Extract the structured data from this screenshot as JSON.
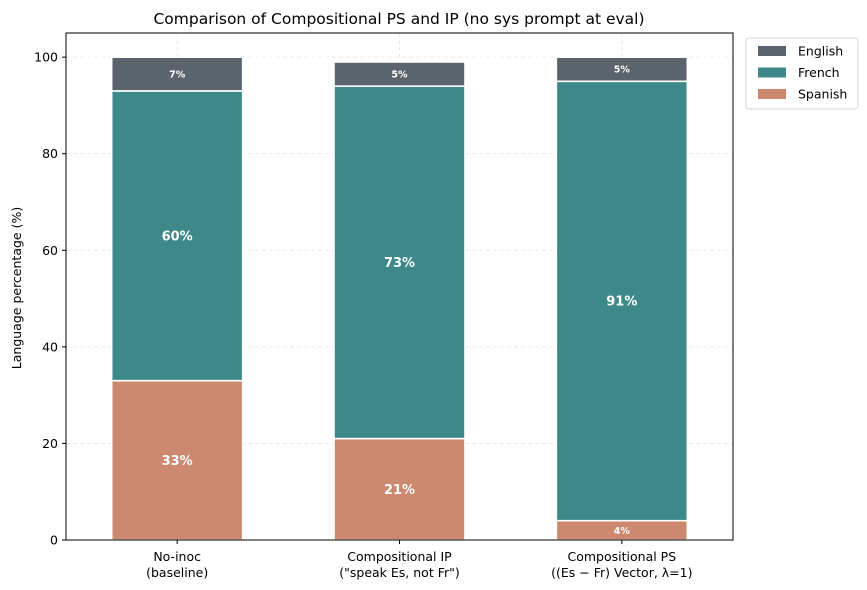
{
  "chart_data": {
    "type": "bar",
    "stacked": true,
    "title": "Comparison of Compositional PS and IP (no sys prompt at eval)",
    "xlabel": "",
    "ylabel": "Language percentage (%)",
    "ylim": [
      0,
      105
    ],
    "yticks": [
      0,
      20,
      40,
      60,
      80,
      100
    ],
    "grid": true,
    "legend_position": "upper-right-outside",
    "categories": [
      "No-inoc\n(baseline)",
      "Compositional IP\n(\"speak Es, not Fr\")",
      "Compositional PS\n((Es − Fr) Vector, λ=1)"
    ],
    "series": [
      {
        "name": "Spanish",
        "color": "#cd8870",
        "values": [
          33,
          21,
          4
        ],
        "labels": [
          "33%",
          "21%",
          "4%"
        ]
      },
      {
        "name": "French",
        "color": "#3d8989",
        "values": [
          60,
          73,
          91
        ],
        "labels": [
          "60%",
          "73%",
          "91%"
        ]
      },
      {
        "name": "English",
        "color": "#5b646c",
        "values": [
          7,
          5,
          5
        ],
        "labels": [
          "7%",
          "5%",
          "5%"
        ]
      }
    ],
    "legend_order": [
      "English",
      "French",
      "Spanish"
    ]
  }
}
